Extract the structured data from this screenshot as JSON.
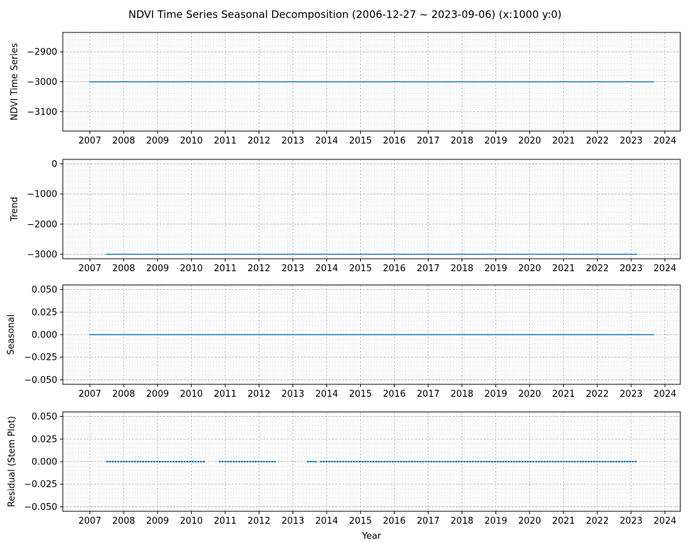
{
  "figure_title": "NDVI Time Series Seasonal Decomposition (2006-12-27 ~ 2023-09-06) (x:1000 y:0)",
  "xlabel": "Year",
  "colors": {
    "line": "#1f77b4",
    "grid": "#b0b0b0",
    "axis": "#000000"
  },
  "chart_data": [
    {
      "type": "line",
      "ylabel": "NDVI Time Series",
      "xlim": [
        "2006-03-15",
        "2024-06-15"
      ],
      "ylim": [
        -3165,
        -2835
      ],
      "yticks": [
        -3100,
        -3000,
        -2900
      ],
      "xticks": [
        "2007",
        "2008",
        "2009",
        "2010",
        "2011",
        "2012",
        "2013",
        "2014",
        "2015",
        "2016",
        "2017",
        "2018",
        "2019",
        "2020",
        "2021",
        "2022",
        "2023",
        "2024"
      ],
      "grid": true,
      "segments": [
        {
          "x": [
            "2006-12-27",
            "2023-09-06"
          ],
          "y": [
            -3000,
            -3000
          ]
        }
      ]
    },
    {
      "type": "line",
      "ylabel": "Trend",
      "xlim": [
        "2006-03-15",
        "2024-06-15"
      ],
      "ylim": [
        -3150,
        150
      ],
      "yticks": [
        -3000,
        -2000,
        -1000,
        0
      ],
      "xticks": [
        "2007",
        "2008",
        "2009",
        "2010",
        "2011",
        "2012",
        "2013",
        "2014",
        "2015",
        "2016",
        "2017",
        "2018",
        "2019",
        "2020",
        "2021",
        "2022",
        "2023",
        "2024"
      ],
      "grid": true,
      "segments": [
        {
          "x": [
            "2007-06-27",
            "2023-03-06"
          ],
          "y": [
            -3000,
            -3000
          ]
        }
      ]
    },
    {
      "type": "line",
      "ylabel": "Seasonal",
      "xlim": [
        "2006-03-15",
        "2024-06-15"
      ],
      "ylim": [
        -0.055,
        0.055
      ],
      "yticks": [
        -0.05,
        -0.025,
        0.0,
        0.025,
        0.05
      ],
      "ytick_labels": [
        "−0.050",
        "−0.025",
        "0.000",
        "0.025",
        "0.050"
      ],
      "xticks": [
        "2007",
        "2008",
        "2009",
        "2010",
        "2011",
        "2012",
        "2013",
        "2014",
        "2015",
        "2016",
        "2017",
        "2018",
        "2019",
        "2020",
        "2021",
        "2022",
        "2023",
        "2024"
      ],
      "grid": true,
      "segments": [
        {
          "x": [
            "2006-12-27",
            "2023-09-06"
          ],
          "y": [
            0,
            0
          ]
        }
      ]
    },
    {
      "type": "line",
      "ylabel": "Residual (Stem Plot)",
      "xlim": [
        "2006-03-15",
        "2024-06-15"
      ],
      "ylim": [
        -0.055,
        0.055
      ],
      "yticks": [
        -0.05,
        -0.025,
        0.0,
        0.025,
        0.05
      ],
      "ytick_labels": [
        "−0.050",
        "−0.025",
        "0.000",
        "0.025",
        "0.050"
      ],
      "xticks": [
        "2007",
        "2008",
        "2009",
        "2010",
        "2011",
        "2012",
        "2013",
        "2014",
        "2015",
        "2016",
        "2017",
        "2018",
        "2019",
        "2020",
        "2021",
        "2022",
        "2023",
        "2024"
      ],
      "grid": true,
      "dashed": true,
      "segments": [
        {
          "x": [
            "2007-06-27",
            "2010-06-01"
          ],
          "y": [
            0,
            0
          ]
        },
        {
          "x": [
            "2010-10-25",
            "2012-07-01"
          ],
          "y": [
            0,
            0
          ]
        },
        {
          "x": [
            "2013-06-01",
            "2013-09-15"
          ],
          "y": [
            0,
            0
          ]
        },
        {
          "x": [
            "2013-10-20",
            "2023-03-06"
          ],
          "y": [
            0,
            0
          ]
        }
      ]
    }
  ]
}
